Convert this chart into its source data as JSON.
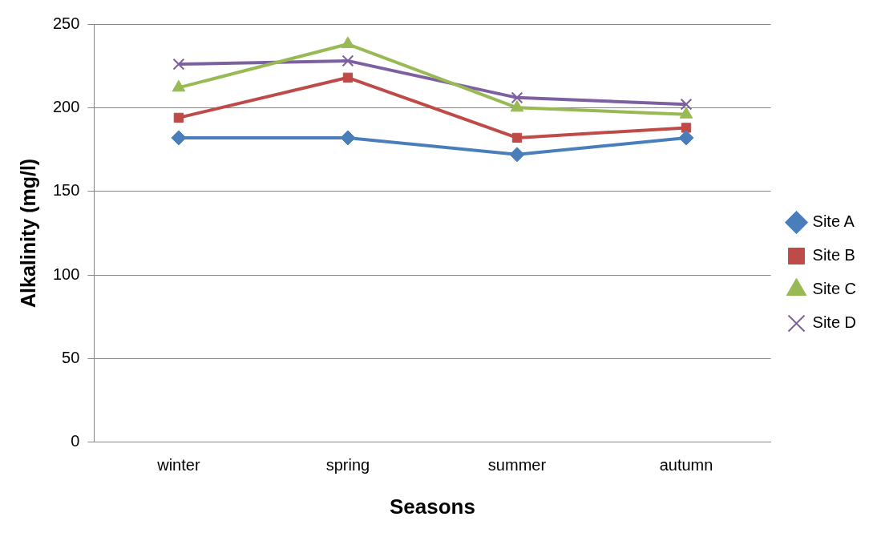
{
  "chart_data": {
    "type": "line",
    "xlabel": "Seasons",
    "ylabel": "Alkalinity (mg/l)",
    "categories": [
      "winter",
      "spring",
      "summer",
      "autumn"
    ],
    "series": [
      {
        "name": "Site A",
        "color": "#4a7ebb",
        "marker": "diamond",
        "values": [
          182,
          182,
          172,
          182
        ]
      },
      {
        "name": "Site B",
        "color": "#be4b48",
        "marker": "square",
        "values": [
          194,
          218,
          182,
          188
        ]
      },
      {
        "name": "Site C",
        "color": "#98b954",
        "marker": "triangle",
        "values": [
          212,
          238,
          200,
          196
        ]
      },
      {
        "name": "Site D",
        "color": "#7d60a0",
        "marker": "cross",
        "values": [
          226,
          228,
          206,
          202
        ]
      }
    ],
    "ylim": [
      0,
      250
    ],
    "yticks": [
      0,
      50,
      100,
      150,
      200,
      250
    ],
    "grid": "y",
    "legend": "right"
  }
}
